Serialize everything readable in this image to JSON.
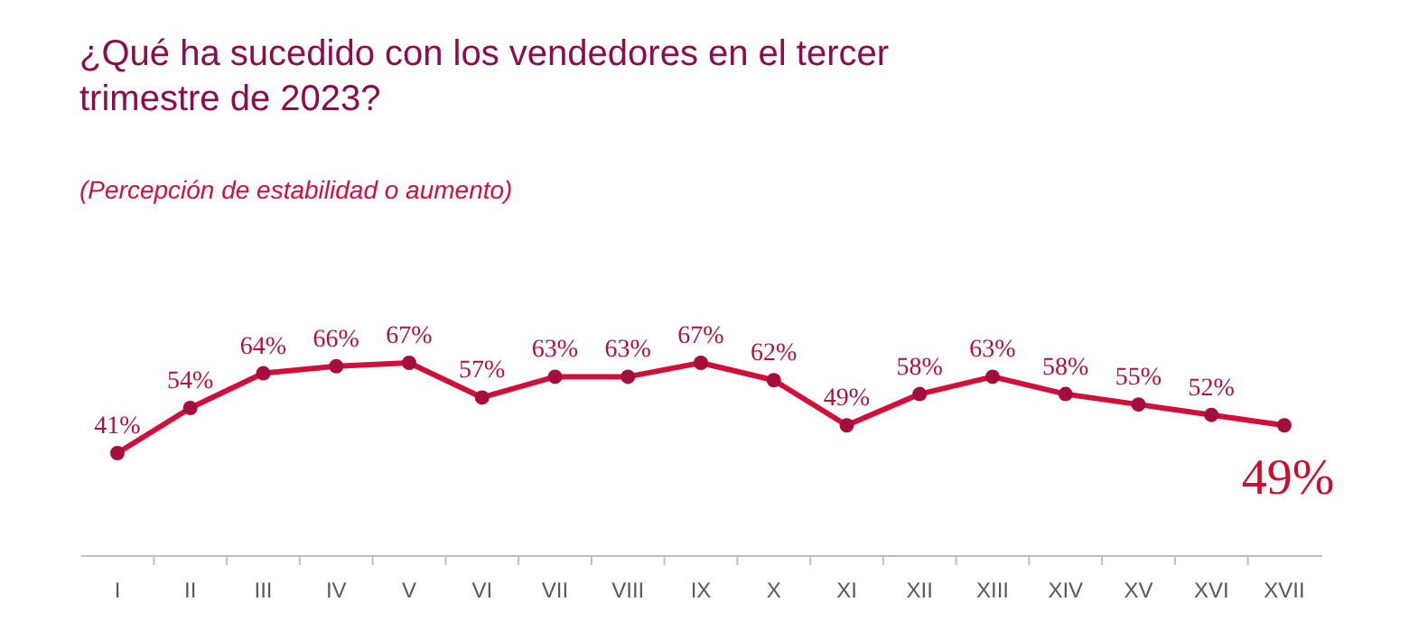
{
  "chart_data": {
    "type": "line",
    "title": "¿Qué ha sucedido con los vendedores en el tercer\ntrimestre de 2023?",
    "subtitle": "(Percepción de estabilidad o aumento)",
    "categories": [
      "I",
      "II",
      "III",
      "IV",
      "V",
      "VI",
      "VII",
      "VIII",
      "IX",
      "X",
      "XI",
      "XII",
      "XIII",
      "XIV",
      "XV",
      "XVI",
      "XVII"
    ],
    "series": [
      {
        "color": "#d0103a",
        "values": [
          41,
          54,
          64,
          66,
          67,
          57,
          63,
          63,
          67,
          62,
          49,
          58,
          63,
          58,
          55,
          52,
          49
        ],
        "value_labels": [
          "41%",
          "54%",
          "64%",
          "66%",
          "67%",
          "57%",
          "63%",
          "63%",
          "67%",
          "62%",
          "49%",
          "58%",
          "63%",
          "58%",
          "55%",
          "52%",
          "49%"
        ]
      }
    ],
    "marker": "circle",
    "line_style": "solid"
  }
}
